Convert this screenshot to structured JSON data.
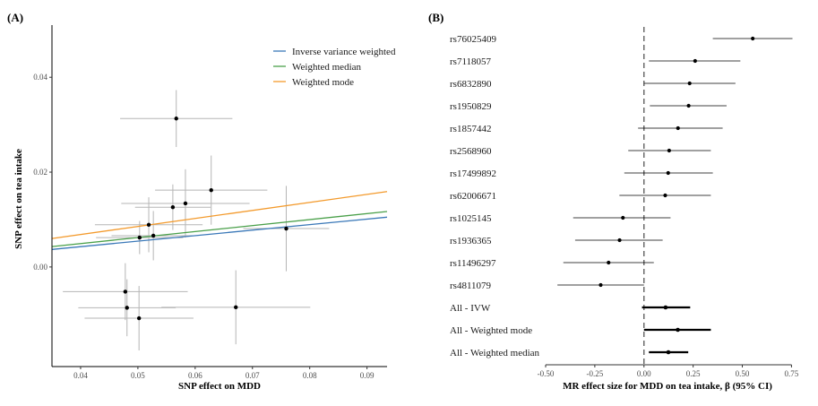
{
  "chart_data": [
    {
      "type": "scatter",
      "panel_label": "(A)",
      "xlabel": "SNP effect on MDD",
      "ylabel": "SNP effect on tea intake",
      "xlim": [
        0.035,
        0.0935
      ],
      "ylim": [
        -0.021,
        0.051
      ],
      "xticks": [
        0.04,
        0.05,
        0.06,
        0.07,
        0.08,
        0.09
      ],
      "xtick_labels": [
        "0.04",
        "0.05",
        "0.06",
        "0.07",
        "0.08",
        "0.09"
      ],
      "yticks": [
        0.0,
        0.02,
        0.04
      ],
      "ytick_labels": [
        "0.00",
        "0.02",
        "0.04"
      ],
      "grid": false,
      "legend_position": "top-right",
      "points": [
        {
          "x": 0.0567,
          "y": 0.0313,
          "xerr": 0.0098,
          "yerr": 0.006
        },
        {
          "x": 0.0628,
          "y": 0.0162,
          "xerr": 0.0098,
          "yerr": 0.0073
        },
        {
          "x": 0.0583,
          "y": 0.0134,
          "xerr": 0.0112,
          "yerr": 0.0072
        },
        {
          "x": 0.0561,
          "y": 0.0126,
          "xerr": 0.0066,
          "yerr": 0.0048
        },
        {
          "x": 0.0519,
          "y": 0.0089,
          "xerr": 0.0094,
          "yerr": 0.0058
        },
        {
          "x": 0.0503,
          "y": 0.0062,
          "xerr": 0.0076,
          "yerr": 0.0035
        },
        {
          "x": 0.0527,
          "y": 0.0066,
          "xerr": 0.0073,
          "yerr": 0.0052
        },
        {
          "x": 0.0759,
          "y": 0.0081,
          "xerr": 0.0075,
          "yerr": 0.009
        },
        {
          "x": 0.0478,
          "y": -0.0052,
          "xerr": 0.0109,
          "yerr": 0.006
        },
        {
          "x": 0.0481,
          "y": -0.0086,
          "xerr": 0.0085,
          "yerr": 0.006
        },
        {
          "x": 0.0671,
          "y": -0.0085,
          "xerr": 0.013,
          "yerr": 0.0078
        },
        {
          "x": 0.0502,
          "y": -0.0108,
          "xerr": 0.0095,
          "yerr": 0.0068
        }
      ],
      "series": [
        {
          "name": "Inverse variance weighted",
          "type": "line",
          "color": "#3a78b8",
          "x": [
            0.035,
            0.0935
          ],
          "y": [
            0.0037,
            0.0105
          ]
        },
        {
          "name": "Weighted median",
          "type": "line",
          "color": "#4aa04a",
          "x": [
            0.035,
            0.0935
          ],
          "y": [
            0.0043,
            0.0117
          ]
        },
        {
          "name": "Weighted mode",
          "type": "line",
          "color": "#f39a2c",
          "x": [
            0.035,
            0.0935
          ],
          "y": [
            0.006,
            0.0159
          ]
        }
      ]
    },
    {
      "type": "forest",
      "panel_label": "(B)",
      "xlabel": "MR effect size for MDD on tea intake, β (95% CI)",
      "xlim": [
        -0.5,
        0.78
      ],
      "xticks": [
        -0.5,
        -0.25,
        0.0,
        0.25,
        0.5,
        0.75
      ],
      "xtick_labels": [
        "-0.50",
        "-0.25",
        "0.00",
        "0.25",
        "0.50",
        "0.75"
      ],
      "reference_line": 0.0,
      "grid": false,
      "rows": [
        {
          "label": "rs76025409",
          "estimate": 0.553,
          "lower": 0.35,
          "upper": 0.755,
          "summary": false
        },
        {
          "label": "rs7118057",
          "estimate": 0.26,
          "lower": 0.025,
          "upper": 0.49,
          "summary": false
        },
        {
          "label": "rs6832890",
          "estimate": 0.232,
          "lower": 0.0,
          "upper": 0.465,
          "summary": false
        },
        {
          "label": "rs1950829",
          "estimate": 0.227,
          "lower": 0.03,
          "upper": 0.42,
          "summary": false
        },
        {
          "label": "rs1857442",
          "estimate": 0.173,
          "lower": -0.03,
          "upper": 0.4,
          "summary": false
        },
        {
          "label": "rs2568960",
          "estimate": 0.128,
          "lower": -0.08,
          "upper": 0.34,
          "summary": false
        },
        {
          "label": "rs17499892",
          "estimate": 0.123,
          "lower": -0.1,
          "upper": 0.35,
          "summary": false
        },
        {
          "label": "rs62006671",
          "estimate": 0.108,
          "lower": -0.125,
          "upper": 0.34,
          "summary": false
        },
        {
          "label": "rs1025145",
          "estimate": -0.107,
          "lower": -0.36,
          "upper": 0.135,
          "summary": false
        },
        {
          "label": "rs1936365",
          "estimate": -0.124,
          "lower": -0.35,
          "upper": 0.095,
          "summary": false
        },
        {
          "label": "rs11496297",
          "estimate": -0.18,
          "lower": -0.41,
          "upper": 0.05,
          "summary": false
        },
        {
          "label": "rs4811079",
          "estimate": -0.22,
          "lower": -0.44,
          "upper": 0.0,
          "summary": false
        },
        {
          "label": "All - IVW",
          "estimate": 0.11,
          "lower": -0.01,
          "upper": 0.235,
          "summary": true
        },
        {
          "label": "All - Weighted mode",
          "estimate": 0.172,
          "lower": 0.0,
          "upper": 0.34,
          "summary": true
        },
        {
          "label": "All - Weighted median",
          "estimate": 0.124,
          "lower": 0.025,
          "upper": 0.225,
          "summary": true
        }
      ]
    }
  ]
}
